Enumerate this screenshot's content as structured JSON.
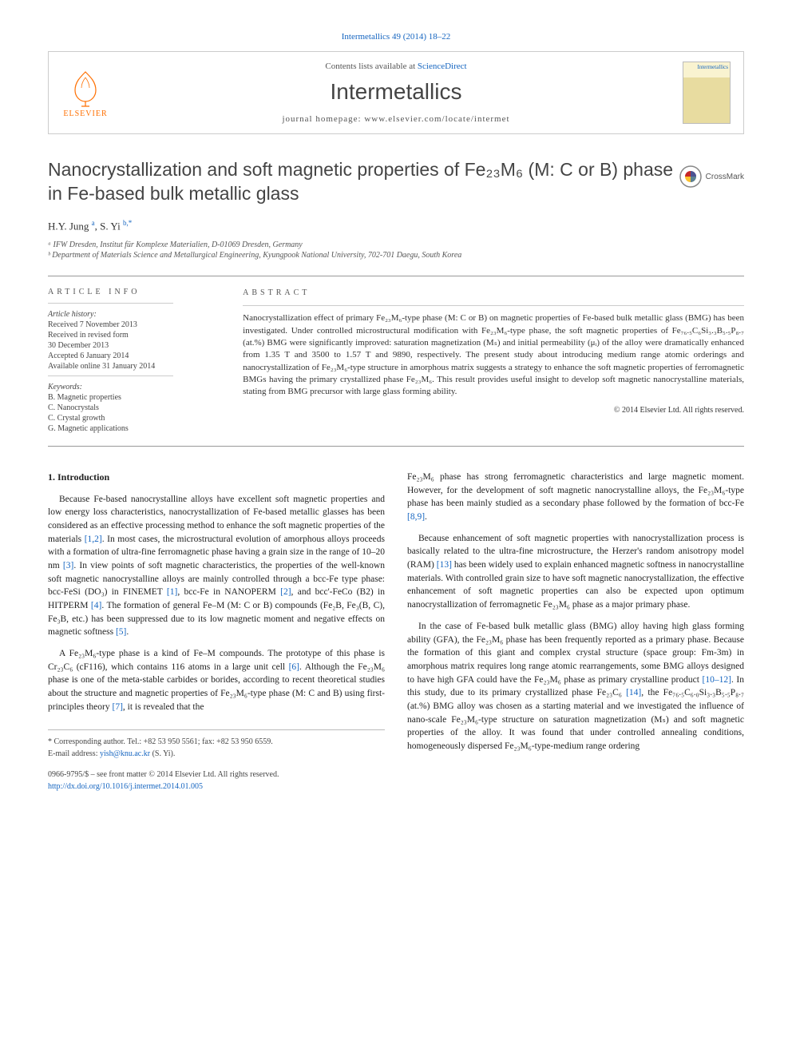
{
  "citation": "Intermetallics 49 (2014) 18–22",
  "header": {
    "contents_prefix": "Contents lists available at ",
    "contents_link": "ScienceDirect",
    "journal": "Intermetallics",
    "homepage_prefix": "journal homepage: ",
    "homepage_url": "www.elsevier.com/locate/intermet",
    "publisher_name": "ELSEVIER",
    "cover_text": "Intermetallics"
  },
  "title": "Nanocrystallization and soft magnetic properties of Fe₂₃M₆ (M: C or B) phase in Fe-based bulk metallic glass",
  "crossmark_label": "CrossMark",
  "authors_html": "H.Y. Jung <sup>a</sup>, S. Yi <sup>b,*</sup>",
  "affiliations": [
    "ᵃ IFW Dresden, Institut für Komplexe Materialien, D-01069 Dresden, Germany",
    "ᵇ Department of Materials Science and Metallurgical Engineering, Kyungpook National University, 702-701 Daegu, South Korea"
  ],
  "article_info": {
    "label": "ARTICLE INFO",
    "history_label": "Article history:",
    "history": [
      "Received 7 November 2013",
      "Received in revised form",
      "30 December 2013",
      "Accepted 6 January 2014",
      "Available online 31 January 2014"
    ],
    "keywords_label": "Keywords:",
    "keywords": [
      "B. Magnetic properties",
      "C. Nanocrystals",
      "C. Crystal growth",
      "G. Magnetic applications"
    ]
  },
  "abstract": {
    "label": "ABSTRACT",
    "text": "Nanocrystallization effect of primary Fe₂₃M₆-type phase (M: C or B) on magnetic properties of Fe-based bulk metallic glass (BMG) has been investigated. Under controlled microstructural modification with Fe₂₃M₆-type phase, the soft magnetic properties of Fe₇₆.₅C₆Si₃.₃B₅.₅P₈.₇ (at.%) BMG were significantly improved: saturation magnetization (Mₛ) and initial permeability (μᵢ) of the alloy were dramatically enhanced from 1.35 T and 3500 to 1.57 T and 9890, respectively. The present study about introducing medium range atomic orderings and nanocrystallization of Fe₂₃M₆-type structure in amorphous matrix suggests a strategy to enhance the soft magnetic properties of ferromagnetic BMGs having the primary crystallized phase Fe₂₃M₆. This result provides useful insight to develop soft magnetic nanocrystalline materials, stating from BMG precursor with large glass forming ability.",
    "copyright": "© 2014 Elsevier Ltd. All rights reserved."
  },
  "body": {
    "section_num": "1.",
    "section_title": "Introduction",
    "p1": "Because Fe-based nanocrystalline alloys have excellent soft magnetic properties and low energy loss characteristics, nanocrystallization of Fe-based metallic glasses has been considered as an effective processing method to enhance the soft magnetic properties of the materials [1,2]. In most cases, the microstructural evolution of amorphous alloys proceeds with a formation of ultra-fine ferromagnetic phase having a grain size in the range of 10–20 nm [3]. In view points of soft magnetic characteristics, the properties of the well-known soft magnetic nanocrystalline alloys are mainly controlled through a bcc-Fe type phase: bcc-FeSi (DO₃) in FINEMET [1], bcc-Fe in NANOPERM [2], and bcc'-FeCo (B2) in HITPERM [4]. The formation of general Fe–M (M: C or B) compounds (Fe₂B, Fe₃(B, C), Fe₃B, etc.) has been suppressed due to its low magnetic moment and negative effects on magnetic softness [5].",
    "p2": "A Fe₂₃M₆-type phase is a kind of Fe–M compounds. The prototype of this phase is Cr₂₃C₆ (cF116), which contains 116 atoms in a large unit cell [6]. Although the Fe₂₃M₆ phase is one of the meta-stable carbides or borides, according to recent theoretical studies about the structure and magnetic properties of Fe₂₃M₆-type phase (M: C and B) using first-principles theory [7], it is revealed that the",
    "p3": "Fe₂₃M₆ phase has strong ferromagnetic characteristics and large magnetic moment. However, for the development of soft magnetic nanocrystalline alloys, the Fe₂₃M₆-type phase has been mainly studied as a secondary phase followed by the formation of bcc-Fe [8,9].",
    "p4": "Because enhancement of soft magnetic properties with nanocrystallization process is basically related to the ultra-fine microstructure, the Herzer's random anisotropy model (RAM) [13] has been widely used to explain enhanced magnetic softness in nanocrystalline materials. With controlled grain size to have soft magnetic nanocrystallization, the effective enhancement of soft magnetic properties can also be expected upon optimum nanocrystallization of ferromagnetic Fe₂₃M₆ phase as a major primary phase.",
    "p5": "In the case of Fe-based bulk metallic glass (BMG) alloy having high glass forming ability (GFA), the Fe₂₃M₆ phase has been frequently reported as a primary phase. Because the formation of this giant and complex crystal structure (space group: Fm-3m) in amorphous matrix requires long range atomic rearrangements, some BMG alloys designed to have high GFA could have the Fe₂₃M₆ phase as primary crystalline product [10–12]. In this study, due to its primary crystallized phase Fe₂₃C₆ [14], the Fe₇₆.₅C₆.₀Si₃.₃B₅.₅P₈.₇ (at.%) BMG alloy was chosen as a starting material and we investigated the influence of nano-scale Fe₂₃M₆-type structure on saturation magnetization (Mₛ) and soft magnetic properties of the alloy. It was found that under controlled annealing conditions, homogeneously dispersed Fe₂₃M₆-type-medium range ordering"
  },
  "footnote": {
    "corr": "* Corresponding author. Tel.: +82 53 950 5561; fax: +82 53 950 6559.",
    "email_label": "E-mail address: ",
    "email": "yish@knu.ac.kr",
    "email_suffix": " (S. Yi)."
  },
  "footer_bottom": {
    "issn": "0966-9795/$ – see front matter © 2014 Elsevier Ltd. All rights reserved.",
    "doi": "http://dx.doi.org/10.1016/j.intermet.2014.01.005"
  },
  "colors": {
    "link": "#1565c0",
    "publisher_orange": "#ff6f00",
    "text": "#222222",
    "border": "#cccccc"
  }
}
